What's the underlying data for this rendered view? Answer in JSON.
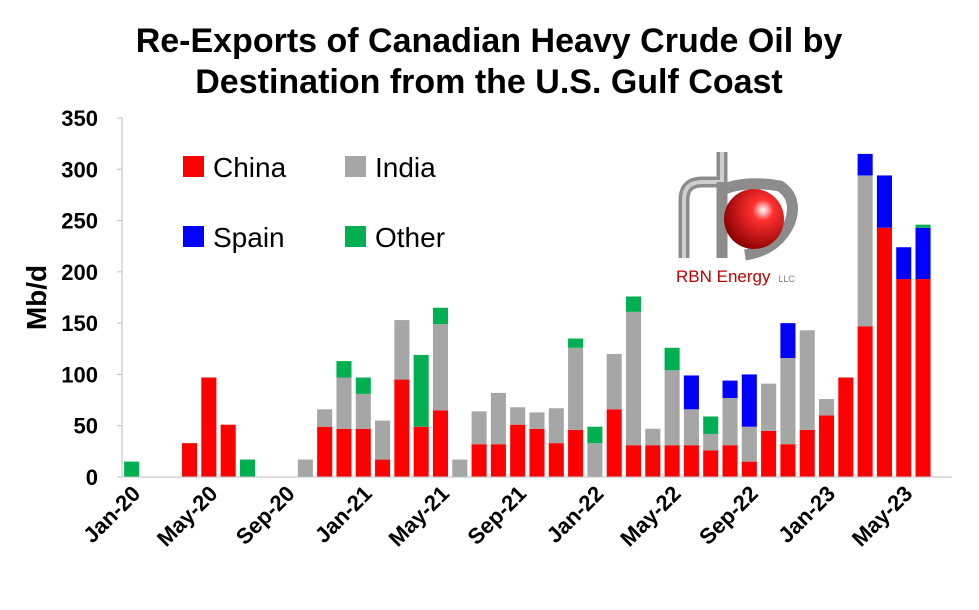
{
  "chart_data": {
    "type": "bar",
    "stacked": true,
    "title_lines": [
      "Re-Exports of Canadian Heavy Crude Oil by",
      "Destination from the U.S. Gulf Coast"
    ],
    "ylabel": "Mb/d",
    "ylim": [
      0,
      350
    ],
    "yticks": [
      0,
      50,
      100,
      150,
      200,
      250,
      300,
      350
    ],
    "x_tick_labels": [
      "Jan-20",
      "May-20",
      "Sep-20",
      "Jan-21",
      "May-21",
      "Sep-21",
      "Jan-22",
      "May-22",
      "Sep-22",
      "Jan-23",
      "May-23"
    ],
    "x_tick_label_positions": [
      0,
      4,
      8,
      12,
      16,
      20,
      24,
      28,
      32,
      36,
      40
    ],
    "months": [
      "Jan-20",
      "Feb-20",
      "Mar-20",
      "Apr-20",
      "May-20",
      "Jun-20",
      "Jul-20",
      "Aug-20",
      "Sep-20",
      "Oct-20",
      "Nov-20",
      "Dec-20",
      "Jan-21",
      "Feb-21",
      "Mar-21",
      "Apr-21",
      "May-21",
      "Jun-21",
      "Jul-21",
      "Aug-21",
      "Sep-21",
      "Oct-21",
      "Nov-21",
      "Dec-21",
      "Jan-22",
      "Feb-22",
      "Mar-22",
      "Apr-22",
      "May-22",
      "Jun-22",
      "Jul-22",
      "Aug-22",
      "Sep-22",
      "Oct-22",
      "Nov-22",
      "Dec-22",
      "Jan-23",
      "Feb-23",
      "Mar-23",
      "Apr-23",
      "May-23",
      "Jun-23",
      "Jul-23"
    ],
    "series": [
      {
        "name": "China",
        "color": "#ff0000",
        "values": [
          0,
          0,
          0,
          33,
          97,
          51,
          0,
          0,
          0,
          0,
          49,
          47,
          47,
          17,
          95,
          49,
          65,
          0,
          32,
          32,
          51,
          47,
          33,
          46,
          0,
          66,
          31,
          31,
          31,
          31,
          26,
          31,
          15,
          45,
          32,
          46,
          60,
          97,
          147,
          243,
          193,
          193,
          0
        ]
      },
      {
        "name": "India",
        "color": "#a6a6a6",
        "values": [
          0,
          0,
          0,
          0,
          0,
          0,
          0,
          0,
          0,
          17,
          17,
          50,
          34,
          38,
          58,
          0,
          84,
          17,
          32,
          50,
          17,
          16,
          34,
          80,
          33,
          54,
          130,
          16,
          73,
          35,
          16,
          46,
          34,
          46,
          84,
          97,
          16,
          0,
          147,
          0,
          0,
          0,
          0
        ]
      },
      {
        "name": "Spain",
        "color": "#0000ff",
        "values": [
          0,
          0,
          0,
          0,
          0,
          0,
          0,
          0,
          0,
          0,
          0,
          0,
          0,
          0,
          0,
          0,
          0,
          0,
          0,
          0,
          0,
          0,
          0,
          0,
          0,
          0,
          0,
          0,
          0,
          33,
          0,
          17,
          51,
          0,
          34,
          0,
          0,
          0,
          21,
          51,
          31,
          50,
          0
        ]
      },
      {
        "name": "Other",
        "color": "#00b050",
        "values": [
          15,
          0,
          0,
          0,
          0,
          0,
          17,
          0,
          0,
          0,
          0,
          16,
          16,
          0,
          0,
          70,
          16,
          0,
          0,
          0,
          0,
          0,
          0,
          9,
          16,
          0,
          15,
          0,
          22,
          0,
          17,
          0,
          0,
          0,
          0,
          0,
          0,
          0,
          0,
          0,
          0,
          3,
          0
        ]
      }
    ],
    "legend": {
      "placement": "top-left",
      "entries": [
        "China",
        "India",
        "Spain",
        "Other"
      ]
    },
    "grid": false
  },
  "logo": {
    "text": "RBN Energy",
    "suffix": "LLC"
  }
}
